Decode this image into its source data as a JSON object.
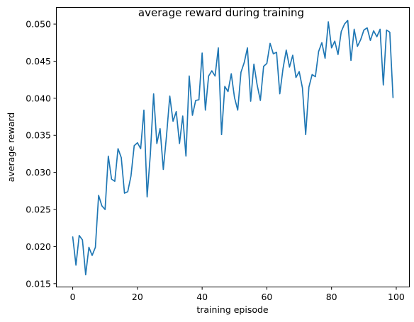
{
  "chart_data": {
    "type": "line",
    "title": "average reward during training",
    "xlabel": "training episode",
    "ylabel": "average reward",
    "xlim": [
      -4.95,
      103.95
    ],
    "ylim": [
      0.0146,
      0.0522
    ],
    "xticks": [
      0,
      20,
      40,
      60,
      80,
      100
    ],
    "yticks": [
      0.015,
      0.02,
      0.025,
      0.03,
      0.035,
      0.04,
      0.045,
      0.05
    ],
    "xtick_labels": [
      "0",
      "20",
      "40",
      "60",
      "80",
      "100"
    ],
    "ytick_labels": [
      "0.015",
      "0.020",
      "0.025",
      "0.030",
      "0.035",
      "0.040",
      "0.045",
      "0.050"
    ],
    "grid": false,
    "color": "#1f77b4",
    "x": [
      0,
      1,
      2,
      3,
      4,
      5,
      6,
      7,
      8,
      9,
      10,
      11,
      12,
      13,
      14,
      15,
      16,
      17,
      18,
      19,
      20,
      21,
      22,
      23,
      24,
      25,
      26,
      27,
      28,
      29,
      30,
      31,
      32,
      33,
      34,
      35,
      36,
      37,
      38,
      39,
      40,
      41,
      42,
      43,
      44,
      45,
      46,
      47,
      48,
      49,
      50,
      51,
      52,
      53,
      54,
      55,
      56,
      57,
      58,
      59,
      60,
      61,
      62,
      63,
      64,
      65,
      66,
      67,
      68,
      69,
      70,
      71,
      72,
      73,
      74,
      75,
      76,
      77,
      78,
      79,
      80,
      81,
      82,
      83,
      84,
      85,
      86,
      87,
      88,
      89,
      90,
      91,
      92,
      93,
      94,
      95,
      96,
      97,
      98,
      99
    ],
    "y": [
      0.0213,
      0.0175,
      0.0215,
      0.0209,
      0.0162,
      0.0199,
      0.0188,
      0.0199,
      0.0269,
      0.0255,
      0.025,
      0.0322,
      0.0291,
      0.0288,
      0.0332,
      0.032,
      0.0272,
      0.0274,
      0.0295,
      0.0336,
      0.034,
      0.0332,
      0.0384,
      0.0267,
      0.0325,
      0.0406,
      0.0339,
      0.0359,
      0.0304,
      0.035,
      0.0403,
      0.0369,
      0.0382,
      0.0339,
      0.0376,
      0.0322,
      0.043,
      0.0377,
      0.0397,
      0.0398,
      0.0461,
      0.0384,
      0.043,
      0.0437,
      0.043,
      0.0468,
      0.0351,
      0.0416,
      0.0409,
      0.0433,
      0.0401,
      0.0384,
      0.0435,
      0.0448,
      0.0468,
      0.0396,
      0.0446,
      0.0418,
      0.0397,
      0.0443,
      0.0447,
      0.0474,
      0.046,
      0.0462,
      0.0406,
      0.044,
      0.0465,
      0.0442,
      0.0458,
      0.0428,
      0.0436,
      0.0414,
      0.0351,
      0.0415,
      0.0432,
      0.0429,
      0.0463,
      0.0475,
      0.0454,
      0.0503,
      0.0468,
      0.0477,
      0.0459,
      0.049,
      0.05,
      0.0505,
      0.0451,
      0.0493,
      0.047,
      0.0479,
      0.0492,
      0.0495,
      0.0478,
      0.0491,
      0.0483,
      0.0493,
      0.0418,
      0.0492,
      0.0489,
      0.0401
    ]
  }
}
